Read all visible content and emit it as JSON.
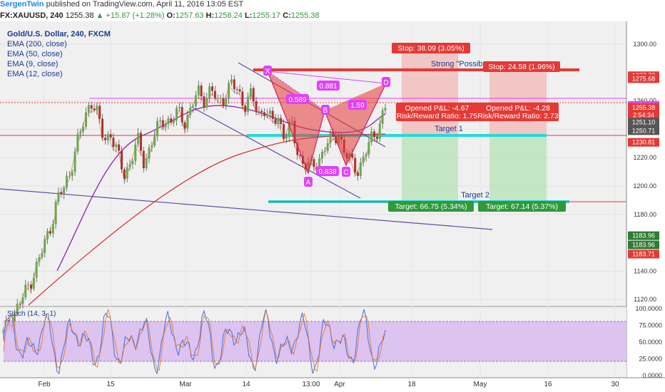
{
  "header": {
    "author": "SergenTwin",
    "published_text": "published on TradingView.com, April 11, 2016 13:05 EST",
    "symbol": "FX:XAUUSD, 240",
    "last": "1255.38",
    "change": "▲ +15.87 (+1.28%)",
    "open_label": "O:",
    "open": "1257.63",
    "high_label": "H:",
    "high": "1258.24",
    "low_label": "L:",
    "low": "1255.17",
    "close_label": "C:",
    "close": "1255.38"
  },
  "legend": {
    "title": "Gold/U.S. Dollar, 240, FXCM",
    "items": [
      "EMA (200, close)",
      "EMA (50, close)",
      "EMA (9, close)",
      "EMA (12, close)"
    ]
  },
  "annotations": {
    "stop1": "Stop: 38.09 (3.05%)",
    "stop2": "Stop: 24.58 (1.96%)",
    "strong": "Strong \"Possib",
    "pnl1_line1": "Opened P&L: -4.67",
    "pnl1_line2": "Risk/Reward Ratio: 1.75",
    "pnl2_line1": "Opened P&L: -4.28",
    "pnl2_line2": "Risk/Reward Ratio: 2.73",
    "target1": "Target 1",
    "target2": "Target 2",
    "target_box1": "Target: 66.75 (5.34%)",
    "target_box2": "Target: 67.14 (5.37%)",
    "ratio1": "0.589",
    "ratio2": "0.881",
    "ratio3": "1.59",
    "ratio4": "0.838",
    "pt_x": "X",
    "pt_a": "A",
    "pt_b": "B",
    "pt_c": "C",
    "pt_d": "D"
  },
  "price_axis": {
    "ticks": [
      "1300.00",
      "1260.00",
      "1240.00",
      "1220.00",
      "1200.00",
      "1180.00",
      "1140.00",
      "1120.00"
    ],
    "tags": [
      {
        "text": "1277.78",
        "value": 1277.78,
        "color": "#e53935"
      },
      {
        "text": "1275.68",
        "value": 1275.68,
        "color": "#e53935"
      },
      {
        "text": "1256.81",
        "value": 1256.81,
        "color": "#e040fb"
      },
      {
        "text": "1255.38",
        "value": 1255.38,
        "color": "#e53935"
      },
      {
        "text": "2:54:34",
        "value": 1250.0,
        "color": "#e53935"
      },
      {
        "text": "1251.10",
        "value": 1245.0,
        "color": "#555555"
      },
      {
        "text": "1250.71",
        "value": 1239.0,
        "color": "#555555"
      },
      {
        "text": "1230.81",
        "value": 1230.81,
        "color": "#e53935"
      },
      {
        "text": "1183.96",
        "value": 1165.0,
        "color": "#2e7d32"
      },
      {
        "text": "1183.96",
        "value": 1158.5,
        "color": "#2e7d32"
      },
      {
        "text": "1183.71",
        "value": 1152.0,
        "color": "#e53935"
      }
    ]
  },
  "stoch": {
    "title": "Stoch (14, 3, 1)",
    "ticks": [
      "100.0000",
      "75.0000",
      "50.0000",
      "25.0000",
      "0.0000"
    ],
    "band": [
      20,
      80
    ]
  },
  "time_axis": [
    "Feb",
    "15",
    "Mar",
    "14",
    "13:00",
    "Apr",
    "18",
    "May",
    "16",
    "30"
  ],
  "chart_data": {
    "type": "candlestick",
    "title": "Gold/U.S. Dollar, 240, FXCM",
    "ylim": [
      1100,
      1310
    ],
    "levels": {
      "stop_top": 1275.68,
      "cyan_target1": 1245,
      "cyan_target2": 1183.96,
      "current": 1255.38,
      "magenta_line": 1256.81,
      "red_line": 1246
    },
    "harmonic_points": {
      "X": 1276,
      "A": 1200,
      "B": 1252,
      "C": 1212,
      "D": 1262
    },
    "close_path": [
      1096,
      1105,
      1114,
      1122,
      1133,
      1144,
      1157,
      1172,
      1190,
      1198,
      1212,
      1230,
      1245,
      1262,
      1250,
      1232,
      1238,
      1222,
      1208,
      1218,
      1232,
      1216,
      1230,
      1240,
      1248,
      1245,
      1252,
      1246,
      1254,
      1266,
      1262,
      1268,
      1258,
      1264,
      1272,
      1266,
      1258,
      1264,
      1250,
      1256,
      1244,
      1248,
      1236,
      1242,
      1222,
      1216,
      1212,
      1218,
      1228,
      1232,
      1238,
      1222,
      1216,
      1212,
      1222,
      1234,
      1242,
      1255
    ]
  }
}
